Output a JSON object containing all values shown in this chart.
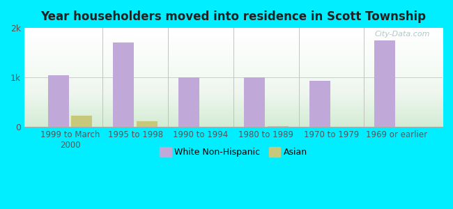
{
  "title": "Year householders moved into residence in Scott Township",
  "categories": [
    "1999 to March\n2000",
    "1995 to 1998",
    "1990 to 1994",
    "1980 to 1989",
    "1970 to 1979",
    "1969 or earlier"
  ],
  "white_values": [
    1050,
    1700,
    1000,
    1000,
    930,
    1750
  ],
  "asian_values": [
    230,
    120,
    0,
    20,
    5,
    0
  ],
  "white_color": "#c0a8d8",
  "asian_color": "#c8c87a",
  "background_outer": "#00eeff",
  "ylim": [
    0,
    2000
  ],
  "yticks": [
    0,
    1000,
    2000
  ],
  "ytick_labels": [
    "0",
    "1k",
    "2k"
  ],
  "bar_width": 0.32,
  "watermark": "City-Data.com",
  "separator_color": "#bbbbbb"
}
